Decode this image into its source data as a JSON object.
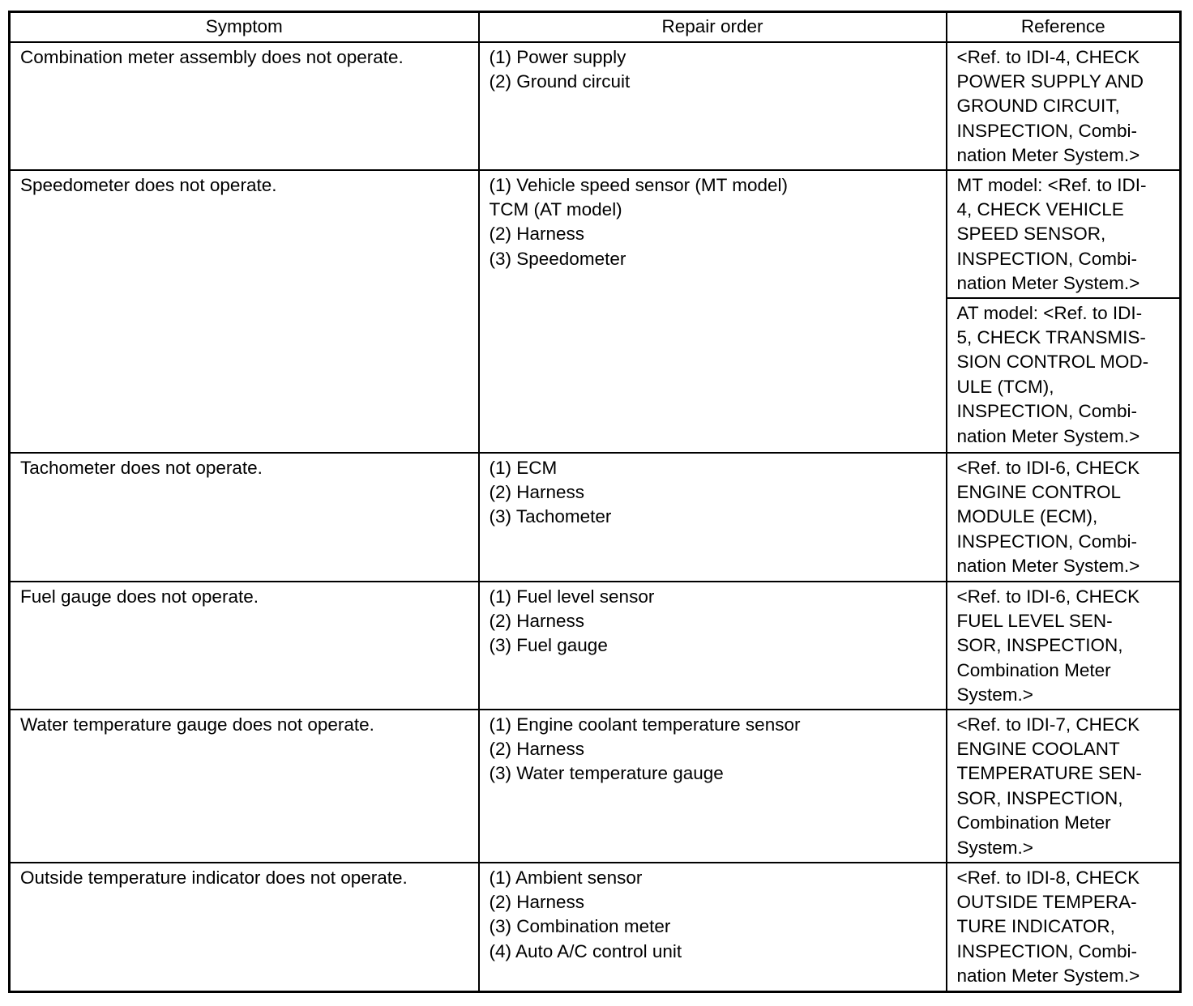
{
  "headers": {
    "symptom": "Symptom",
    "repair_order": "Repair order",
    "reference": "Reference"
  },
  "rows": [
    {
      "symptom": "Combination meter assembly does not operate.",
      "repair_order": "(1) Power supply\n(2) Ground circuit",
      "reference": "<Ref. to IDI-4, CHECK\nPOWER SUPPLY AND\nGROUND CIRCUIT,\nINSPECTION, Combi-\nnation Meter System.>"
    },
    {
      "symptom": "Speedometer does not operate.",
      "repair_order": "(1) Vehicle speed sensor (MT model)\nTCM (AT model)\n(2) Harness\n(3) Speedometer",
      "reference": "MT model: <Ref. to IDI-\n4, CHECK VEHICLE\nSPEED SENSOR,\nINSPECTION, Combi-\nnation Meter System.>",
      "reference_2": "AT model: <Ref. to IDI-\n5, CHECK TRANSMIS-\nSION CONTROL MOD-\nULE (TCM),\nINSPECTION, Combi-\nnation Meter System.>"
    },
    {
      "symptom": "Tachometer does not operate.",
      "repair_order": "(1) ECM\n(2) Harness\n(3) Tachometer",
      "reference": "<Ref. to IDI-6, CHECK\nENGINE CONTROL\nMODULE (ECM),\nINSPECTION, Combi-\nnation Meter System.>"
    },
    {
      "symptom": "Fuel gauge does not operate.",
      "repair_order": "(1) Fuel level sensor\n(2) Harness\n(3) Fuel gauge",
      "reference": "<Ref. to IDI-6, CHECK\nFUEL LEVEL SEN-\nSOR, INSPECTION,\nCombination Meter\nSystem.>"
    },
    {
      "symptom": "Water temperature gauge does not operate.",
      "repair_order": "(1) Engine coolant temperature sensor\n(2) Harness\n(3) Water temperature gauge",
      "reference": "<Ref. to IDI-7, CHECK\nENGINE COOLANT\nTEMPERATURE SEN-\nSOR, INSPECTION,\nCombination Meter\nSystem.>"
    },
    {
      "symptom": "Outside temperature indicator does not operate.",
      "repair_order": "(1) Ambient sensor\n(2) Harness\n(3) Combination meter\n(4) Auto A/C control unit",
      "reference": "<Ref. to IDI-8, CHECK\nOUTSIDE TEMPERA-\nTURE INDICATOR,\nINSPECTION, Combi-\nnation Meter System.>"
    }
  ]
}
